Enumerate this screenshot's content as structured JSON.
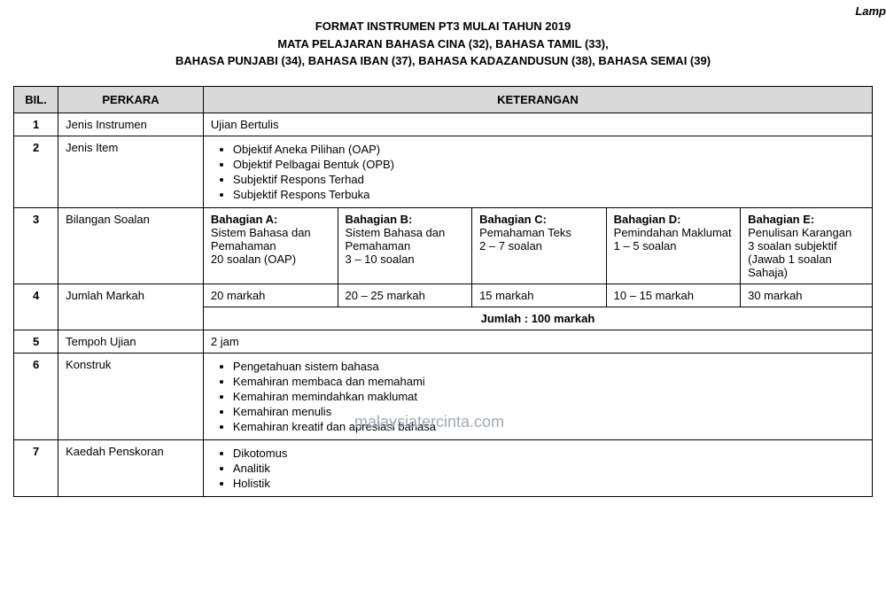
{
  "corner_text": "Lamp",
  "header": {
    "line1": "FORMAT INSTRUMEN PT3 MULAI TAHUN 2019",
    "line2": "MATA PELAJARAN BAHASA CINA (32), BAHASA TAMIL (33),",
    "line3": "BAHASA PUNJABI (34), BAHASA IBAN (37), BAHASA KADAZANDUSUN (38), BAHASA SEMAI (39)"
  },
  "columns": {
    "bil": "BIL.",
    "perkara": "PERKARA",
    "keterangan": "KETERANGAN"
  },
  "rows": {
    "r1": {
      "bil": "1",
      "perkara": "Jenis Instrumen",
      "value": "Ujian Bertulis"
    },
    "r2": {
      "bil": "2",
      "perkara": "Jenis Item",
      "items": {
        "i1": "Objektif Aneka Pilihan (OAP)",
        "i2": "Objektif Pelbagai Bentuk (OPB)",
        "i3": "Subjektif Respons Terhad",
        "i4": "Subjektif Respons Terbuka"
      }
    },
    "r3": {
      "bil": "3",
      "perkara": "Bilangan Soalan",
      "a": {
        "title": "Bahagian A:",
        "line1": "Sistem Bahasa dan Pemahaman",
        "line2": "20 soalan (OAP)"
      },
      "b": {
        "title": "Bahagian B:",
        "line1": "Sistem Bahasa dan Pemahaman",
        "line2": "3 – 10 soalan"
      },
      "c": {
        "title": "Bahagian C:",
        "line1": "Pemahaman Teks",
        "line2": "2 – 7 soalan"
      },
      "d": {
        "title": "Bahagian D:",
        "line1": "Pemindahan Maklumat",
        "line2": "1 – 5 soalan"
      },
      "e": {
        "title": "Bahagian E:",
        "line1": "Penulisan Karangan",
        "line2": "3 soalan subjektif (Jawab 1 soalan Sahaja)"
      }
    },
    "r4": {
      "bil": "4",
      "perkara": "Jumlah Markah",
      "a": "20 markah",
      "b": "20 – 25 markah",
      "c": "15 markah",
      "d": "10 – 15 markah",
      "e": "30 markah",
      "jumlah": "Jumlah : 100 markah"
    },
    "r5": {
      "bil": "5",
      "perkara": "Tempoh Ujian",
      "value": "2 jam"
    },
    "r6": {
      "bil": "6",
      "perkara": "Konstruk",
      "items": {
        "i1": "Pengetahuan sistem bahasa",
        "i2": "Kemahiran membaca dan memahami",
        "i3": "Kemahiran memindahkan maklumat",
        "i4": "Kemahiran menulis",
        "i5": "Kemahiran kreatif dan apresiasi bahasa"
      }
    },
    "r7": {
      "bil": "7",
      "perkara": "Kaedah Penskoran",
      "items": {
        "i1": "Dikotomus",
        "i2": "Analitik",
        "i3": "Holistik"
      }
    }
  },
  "watermark": "malaysiatercinta.com"
}
